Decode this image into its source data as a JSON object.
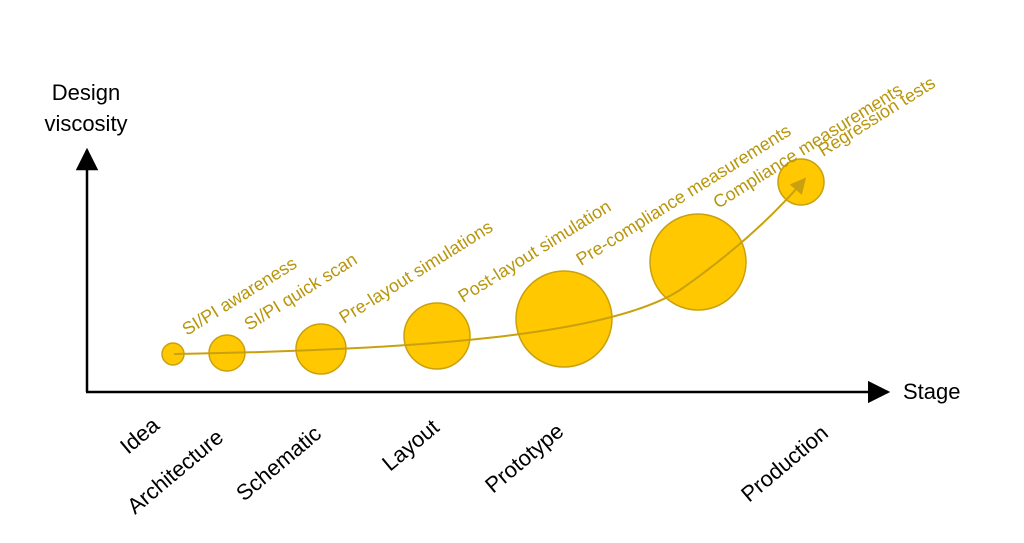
{
  "axes": {
    "y_title_line1": "Design",
    "y_title_line2": "viscosity",
    "x_title": "Stage"
  },
  "colors": {
    "bubble_fill": "#FFC800",
    "bubble_stroke": "#C9A10E",
    "label": "#B8960C",
    "curve": "#C9A10E",
    "axis": "#000000"
  },
  "stages": [
    "Idea",
    "Architecture",
    "Schematic",
    "Layout",
    "Prototype",
    "Production"
  ],
  "activities": [
    "SI/PI awareness",
    "SI/PI quick scan",
    "Pre-layout simulations",
    "Post-layout simulation",
    "Pre-compliance measurements",
    "Compliance measurements",
    "Regression tests"
  ]
}
